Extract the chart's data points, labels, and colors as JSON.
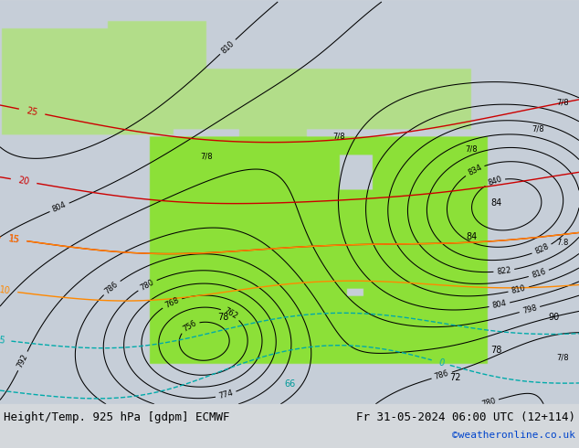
{
  "title_left": "Height/Temp. 925 hPa [gdpm] ECMWF",
  "title_right": "Fr 31-05-2024 06:00 UTC (12+114)",
  "credit": "©weatheronline.co.uk",
  "figsize": [
    6.34,
    4.9
  ],
  "dpi": 100,
  "text_color": "#000000",
  "credit_color": "#0044cc",
  "title_fontsize": 9,
  "credit_fontsize": 8,
  "lon_min": 95,
  "lon_max": 165,
  "lat_min": -50,
  "lat_max": 10
}
